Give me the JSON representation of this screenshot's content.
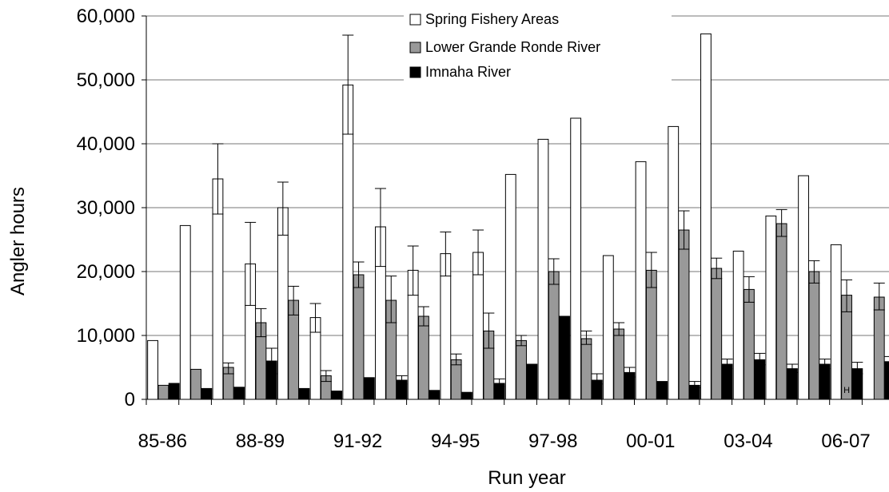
{
  "chart_data": {
    "type": "bar",
    "title": "",
    "xlabel": "Run year",
    "ylabel": "Angler hours",
    "ylim": [
      0,
      60000
    ],
    "yticks": [
      "0",
      "10,000",
      "20,000",
      "30,000",
      "40,000",
      "50,000",
      "60,000"
    ],
    "ytick_values": [
      0,
      10000,
      20000,
      30000,
      40000,
      50000,
      60000
    ],
    "grid": true,
    "legend_position": "top-center",
    "categories": [
      "85-86",
      "86-87",
      "87-88",
      "88-89",
      "89-90",
      "90-91",
      "91-92",
      "92-93",
      "93-94",
      "94-95",
      "95-96",
      "96-97",
      "97-98",
      "98-99",
      "99-00",
      "00-01",
      "01-02",
      "02-03",
      "03-04",
      "04-05",
      "05-06",
      "06-07",
      "07-08"
    ],
    "xtick_labels": [
      "85-86",
      "",
      "",
      "88-89",
      "",
      "",
      "91-92",
      "",
      "",
      "94-95",
      "",
      "",
      "97-98",
      "",
      "",
      "00-01",
      "",
      "",
      "03-04",
      "",
      "",
      "06-07",
      ""
    ],
    "series": [
      {
        "name": "Spring Fishery Areas",
        "color": "#ffffff",
        "values": [
          9200,
          27200,
          34500,
          21200,
          30000,
          12800,
          49200,
          27000,
          20200,
          22800,
          23000,
          35200,
          40700,
          44000,
          22500,
          37200,
          42700,
          57200,
          23200,
          28700,
          35000,
          24200,
          null
        ],
        "errors": [
          null,
          null,
          [
            29000,
            40000
          ],
          [
            14700,
            27700
          ],
          [
            25700,
            34000
          ],
          [
            10500,
            15000
          ],
          [
            41500,
            57000
          ],
          [
            20800,
            33000
          ],
          [
            16300,
            24000
          ],
          [
            19300,
            26200
          ],
          [
            19500,
            26500
          ],
          null,
          null,
          null,
          null,
          null,
          null,
          null,
          null,
          null,
          null,
          null,
          null
        ]
      },
      {
        "name": "Lower Grande Ronde River",
        "color": "#999999",
        "values": [
          2200,
          4700,
          5000,
          12000,
          15500,
          3700,
          19500,
          15500,
          13000,
          6200,
          10700,
          9200,
          20000,
          9500,
          11000,
          20200,
          26500,
          20500,
          17200,
          27500,
          20000,
          16300,
          16000
        ],
        "errors": [
          null,
          null,
          [
            4000,
            5700
          ],
          [
            9800,
            14200
          ],
          [
            13200,
            17700
          ],
          [
            2800,
            4500
          ],
          [
            17500,
            21500
          ],
          [
            12000,
            19300
          ],
          [
            11500,
            14500
          ],
          [
            5400,
            7100
          ],
          [
            8000,
            13500
          ],
          [
            8400,
            10000
          ],
          [
            18000,
            22000
          ],
          [
            8600,
            10700
          ],
          [
            10000,
            12000
          ],
          [
            17500,
            23000
          ],
          [
            23500,
            29500
          ],
          [
            18900,
            22100
          ],
          [
            15200,
            19200
          ],
          [
            25500,
            29700
          ],
          [
            18200,
            21700
          ],
          [
            13700,
            18700
          ],
          [
            14000,
            18200
          ]
        ]
      },
      {
        "name": "Imnaha River",
        "color": "#000000",
        "values": [
          2500,
          1700,
          1900,
          6000,
          1700,
          1300,
          3400,
          3000,
          1400,
          1100,
          2500,
          5500,
          13000,
          3000,
          4200,
          2800,
          2200,
          5500,
          6200,
          4800,
          5500,
          4800,
          5900
        ],
        "errors": [
          null,
          null,
          null,
          [
            4000,
            8000
          ],
          null,
          null,
          null,
          [
            2400,
            3700
          ],
          null,
          null,
          [
            2000,
            3200
          ],
          null,
          null,
          [
            2400,
            4000
          ],
          [
            3500,
            5000
          ],
          null,
          [
            1800,
            2800
          ],
          [
            4800,
            6300
          ],
          [
            5400,
            7200
          ],
          [
            4200,
            5500
          ],
          [
            4800,
            6300
          ],
          [
            4000,
            5800
          ],
          [
            5200,
            6700
          ]
        ]
      }
    ],
    "annotations": [
      {
        "text": "H",
        "category": "06-07",
        "series": "Lower Grande Ronde River",
        "y": 1500
      }
    ]
  }
}
